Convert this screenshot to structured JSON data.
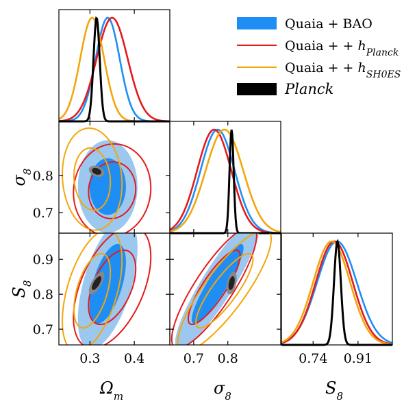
{
  "legend": {
    "placement": "top-right",
    "items": [
      {
        "label": "Quaia + BAO",
        "color": "#1e8ef5",
        "style": "filled"
      },
      {
        "label": "Quaia + h_Planck",
        "color": "#e41a1c",
        "style": "line"
      },
      {
        "label": "Quaia + h_SH0ES",
        "color": "#f5a50a",
        "style": "line"
      },
      {
        "label": "Planck",
        "color": "#000000",
        "style": "filled"
      }
    ]
  },
  "chart_data": {
    "type": "corner",
    "parameters": [
      {
        "key": "Om",
        "label": "Ωm",
        "range": [
          0.23,
          0.48
        ],
        "ticks": [
          0.3,
          0.4
        ],
        "tick_labels": [
          "0.3",
          "0.4"
        ]
      },
      {
        "key": "s8",
        "label": "σ8",
        "range": [
          0.63,
          0.955
        ],
        "ticks": [
          0.7,
          0.8
        ],
        "tick_labels": [
          "0.7",
          "0.8"
        ]
      },
      {
        "key": "S8",
        "label": "S8",
        "range": [
          0.62,
          1.04
        ],
        "ticks": [
          0.74,
          0.91
        ],
        "tick_labels": [
          "0.74",
          "0.91"
        ]
      }
    ],
    "left_axis": {
      "s8": {
        "range": [
          0.645,
          0.945
        ],
        "ticks": [
          0.7,
          0.8
        ],
        "tick_labels": [
          "0.7",
          "0.8"
        ]
      },
      "S8": {
        "range": [
          0.655,
          0.975
        ],
        "ticks": [
          0.7,
          0.8,
          0.9
        ],
        "tick_labels": [
          "0.7",
          "0.8",
          "0.9"
        ]
      }
    },
    "series": [
      {
        "name": "Quaia + BAO",
        "color": "#1e8ef5",
        "fill_inner": "#1e8ef5",
        "fill_outer": "#9cc8f0",
        "mean": {
          "Om": 0.34,
          "s8": 0.77,
          "S8": 0.83
        },
        "sigma": {
          "Om": 0.027,
          "s8": 0.05,
          "S8": 0.075
        },
        "corr": {
          "Om_s8": 0.0,
          "Om_S8": 0.55,
          "s8_S8": 0.9
        }
      },
      {
        "name": "Quaia + h_Planck",
        "color": "#e41a1c",
        "mean": {
          "Om": 0.35,
          "s8": 0.76,
          "S8": 0.82
        },
        "sigma": {
          "Om": 0.035,
          "s8": 0.05,
          "S8": 0.07
        },
        "corr": {
          "Om_s8": 0.05,
          "Om_S8": 0.5,
          "s8_S8": 0.85
        }
      },
      {
        "name": "Quaia + h_SH0ES",
        "color": "#f5a50a",
        "mean": {
          "Om": 0.305,
          "s8": 0.79,
          "S8": 0.81
        },
        "sigma": {
          "Om": 0.027,
          "s8": 0.055,
          "S8": 0.07
        },
        "corr": {
          "Om_s8": -0.1,
          "Om_S8": 0.5,
          "s8_S8": 0.85
        }
      },
      {
        "name": "Planck",
        "color": "#000000",
        "fill_inner": "#222222",
        "fill_outer": "#888888",
        "mean": {
          "Om": 0.315,
          "s8": 0.811,
          "S8": 0.832
        },
        "sigma": {
          "Om": 0.007,
          "s8": 0.006,
          "S8": 0.013
        },
        "corr": {
          "Om_s8": -0.3,
          "Om_S8": 0.7,
          "s8_S8": 0.4
        }
      }
    ]
  }
}
